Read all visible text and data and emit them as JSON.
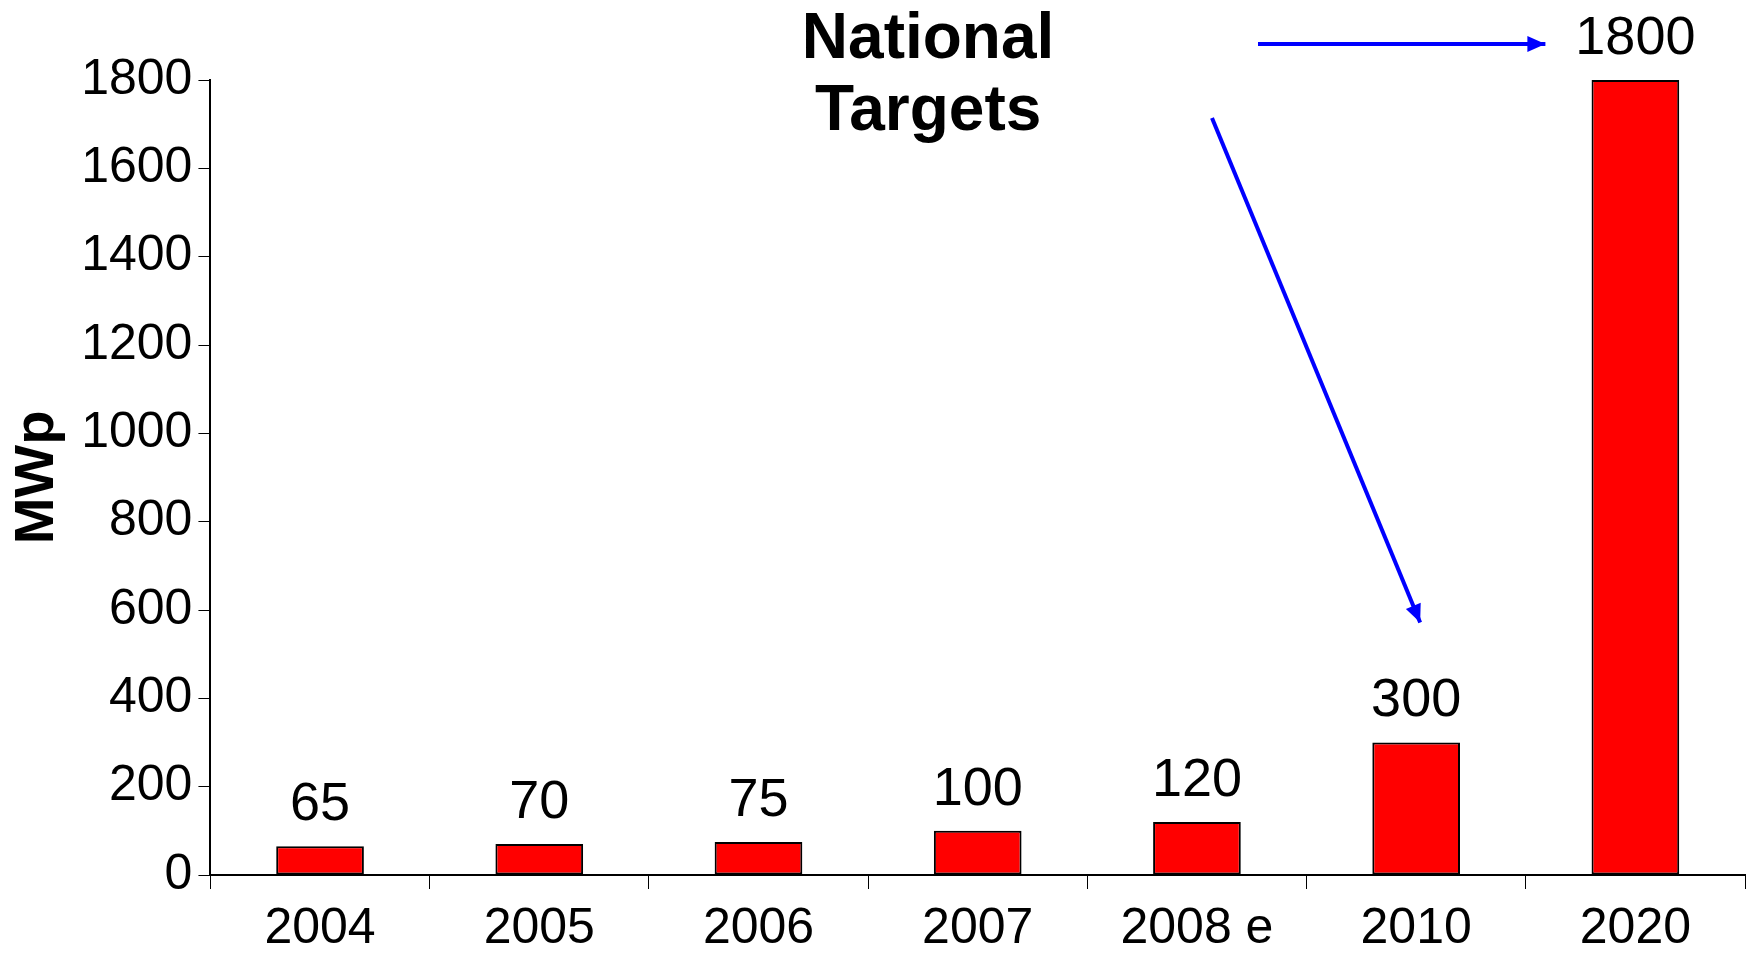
{
  "chart_data": {
    "type": "bar",
    "categories": [
      "2004",
      "2005",
      "2006",
      "2007",
      "2008 e",
      "2010",
      "2020"
    ],
    "values": [
      65,
      70,
      75,
      100,
      120,
      300,
      1800
    ],
    "color": "#ff0000",
    "ylabel": "MWp",
    "ylim": [
      0,
      1800
    ],
    "yticks": [
      0,
      200,
      400,
      600,
      800,
      1000,
      1200,
      1400,
      1600,
      1800
    ],
    "grid": false,
    "legend": false,
    "data_labels": true,
    "annotations": [
      "National Targets"
    ]
  }
}
